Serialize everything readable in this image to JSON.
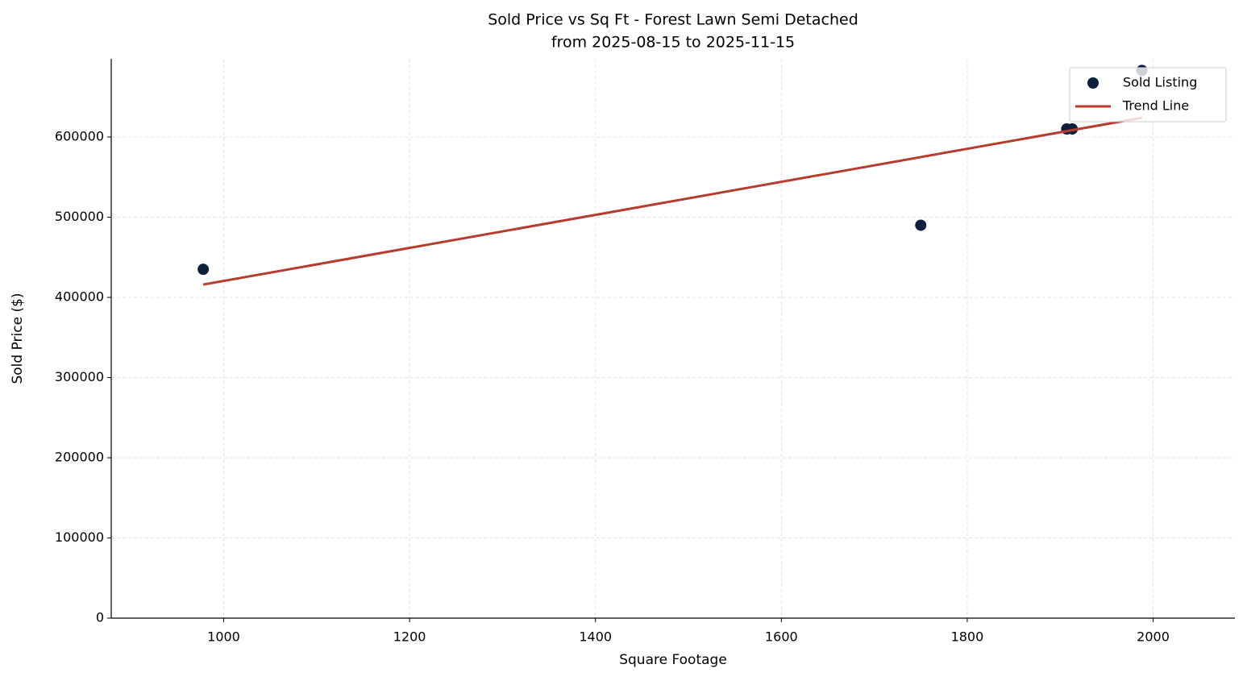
{
  "chart_data": {
    "type": "scatter",
    "title": "Sold Price vs Sq Ft - Forest Lawn Semi Detached",
    "subtitle": "from 2025-08-15 to 2025-11-15",
    "x_label": "Square Footage",
    "y_label": "Sold Price ($)",
    "series": [
      {
        "name": "Sold Listing",
        "type": "scatter",
        "color": "#0d1f3c",
        "x": [
          978,
          1750,
          1907,
          1913,
          1988
        ],
        "values": [
          435000,
          490000,
          610000,
          610000,
          683000
        ]
      },
      {
        "name": "Trend Line",
        "type": "line",
        "color": "#b83c2e",
        "x": [
          978,
          1988
        ],
        "values": [
          416000,
          624000
        ]
      }
    ],
    "xlim": [
      879,
      2088
    ],
    "ylim": [
      0,
      697500
    ],
    "xticks": [
      1000,
      1200,
      1400,
      1600,
      1800,
      2000
    ],
    "yticks": [
      0,
      100000,
      200000,
      300000,
      400000,
      500000,
      600000
    ],
    "grid": true,
    "legend": "upper right"
  }
}
